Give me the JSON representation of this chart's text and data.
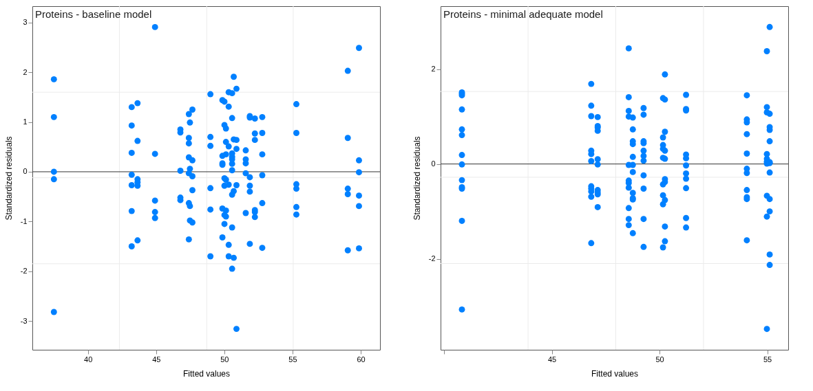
{
  "chart_data": [
    {
      "type": "scatter",
      "title": "Proteins - baseline model",
      "xlabel": "Fitted values",
      "ylabel": "Standardized residuals",
      "marker": "circle",
      "grid": false,
      "xlim": [
        35.93,
        61.41
      ],
      "ylim": [
        -3.58,
        3.33
      ],
      "xticks": [
        40,
        45,
        50,
        55,
        60
      ],
      "yticks": [
        -3,
        -2,
        -1,
        0,
        1,
        2,
        3
      ],
      "ref_lines": [
        {
          "axis": "x",
          "value": 42.31,
          "color": "#ebebeb"
        },
        {
          "axis": "x",
          "value": 48.71,
          "color": "#ebebeb"
        },
        {
          "axis": "x",
          "value": 55.05,
          "color": "#ebebeb"
        },
        {
          "axis": "y",
          "value": 1.6,
          "color": "#ebebeb"
        },
        {
          "axis": "y",
          "value": -0.12,
          "color": "#ebebeb"
        },
        {
          "axis": "y",
          "value": -1.85,
          "color": "#ebebeb"
        },
        {
          "axis": "y",
          "value": 0,
          "color": "#333333"
        }
      ],
      "series": [
        {
          "color": "#0080ff",
          "x": [
            37.51,
            37.51,
            37.51,
            37.51,
            37.51,
            43.21,
            43.21,
            43.21,
            43.21,
            43.21,
            43.21,
            43.21,
            43.64,
            43.64,
            43.64,
            43.64,
            43.64,
            43.64,
            44.92,
            44.92,
            44.92,
            44.92,
            44.92,
            46.78,
            46.78,
            46.78,
            46.78,
            46.78,
            47.4,
            47.4,
            47.4,
            47.4,
            47.4,
            47.4,
            47.4,
            47.48,
            47.48,
            47.48,
            47.48,
            47.66,
            47.66,
            47.66,
            47.66,
            47.66,
            48.98,
            48.98,
            48.98,
            48.98,
            48.98,
            48.98,
            49.86,
            49.86,
            49.86,
            49.86,
            49.86,
            49.86,
            50.01,
            50.01,
            50.01,
            50.01,
            50.01,
            50.01,
            50.12,
            50.12,
            50.12,
            50.12,
            50.12,
            50.12,
            50.32,
            50.32,
            50.32,
            50.32,
            50.32,
            50.32,
            50.57,
            50.57,
            50.57,
            50.57,
            50.57,
            50.57,
            50.57,
            50.57,
            50.57,
            50.57,
            50.69,
            50.69,
            50.69,
            50.69,
            50.89,
            50.89,
            50.89,
            50.89,
            50.89,
            51.57,
            51.57,
            51.57,
            51.57,
            51.57,
            51.87,
            51.87,
            51.87,
            51.87,
            51.87,
            51.87,
            52.24,
            52.24,
            52.24,
            52.24,
            52.24,
            52.24,
            52.78,
            52.78,
            52.78,
            52.78,
            52.78,
            52.78,
            55.28,
            55.28,
            55.28,
            55.28,
            55.28,
            55.28,
            59.05,
            59.05,
            59.05,
            59.05,
            59.05,
            59.87,
            59.87,
            59.87,
            59.87,
            59.87,
            59.87
          ],
          "values": [
            1.86,
            1.1,
            0.0,
            -0.15,
            -2.82,
            1.3,
            0.93,
            0.38,
            -0.06,
            -0.27,
            -0.79,
            -1.5,
            1.38,
            0.62,
            -0.15,
            -0.21,
            -0.28,
            -1.38,
            2.91,
            0.36,
            -0.58,
            -0.81,
            -0.93,
            0.85,
            0.79,
            0.02,
            -0.52,
            -0.57,
            1.16,
            0.68,
            0.57,
            0.29,
            -0.03,
            -0.63,
            -1.36,
            0.99,
            0.06,
            -0.69,
            -0.98,
            1.25,
            0.23,
            -0.09,
            -0.37,
            -1.02,
            1.56,
            0.7,
            0.52,
            -0.33,
            -0.76,
            -1.7,
            1.44,
            0.32,
            0.17,
            0.14,
            -0.74,
            -1.32,
            1.41,
            0.94,
            -0.13,
            -0.28,
            -0.87,
            -1.05,
            0.87,
            0.6,
            0.35,
            -0.16,
            -0.78,
            -0.9,
            1.6,
            1.31,
            0.51,
            -0.26,
            -1.47,
            -1.7,
            1.58,
            1.08,
            0.37,
            0.3,
            0.25,
            0.16,
            0.03,
            -0.46,
            -1.12,
            -1.95,
            1.91,
            0.65,
            -0.39,
            -1.73,
            1.67,
            0.64,
            0.46,
            -0.27,
            -3.16,
            0.43,
            0.25,
            0.17,
            -0.03,
            -0.83,
            1.12,
            1.09,
            -0.11,
            -0.28,
            -0.4,
            -1.45,
            1.07,
            0.77,
            0.64,
            -0.77,
            -0.81,
            -0.91,
            1.1,
            0.78,
            0.35,
            -0.07,
            -0.63,
            -1.53,
            1.36,
            0.78,
            -0.25,
            -0.34,
            -0.71,
            -0.86,
            2.03,
            0.68,
            -0.34,
            -0.45,
            -1.58,
            2.49,
            0.23,
            -0.01,
            -0.48,
            -0.69,
            -1.54
          ]
        }
      ]
    },
    {
      "type": "scatter",
      "title": "Proteins - minimal adequate model",
      "xlabel": "Fitted values",
      "ylabel": "Standardized residuals",
      "marker": "circle",
      "grid": false,
      "xlim": [
        39.84,
        55.97
      ],
      "ylim": [
        -3.92,
        3.33
      ],
      "xticks": [
        {
          "value": 40,
          "label": null
        },
        45,
        50,
        55
      ],
      "yticks": [
        -2,
        0,
        2
      ],
      "ref_lines": [
        {
          "axis": "x",
          "value": 43.9,
          "color": "#ebebeb"
        },
        {
          "axis": "x",
          "value": 47.97,
          "color": "#ebebeb"
        },
        {
          "axis": "x",
          "value": 52.04,
          "color": "#ebebeb"
        },
        {
          "axis": "y",
          "value": 1.53,
          "color": "#ebebeb"
        },
        {
          "axis": "y",
          "value": -0.28,
          "color": "#ebebeb"
        },
        {
          "axis": "y",
          "value": -2.1,
          "color": "#ebebeb"
        },
        {
          "axis": "y",
          "value": 0,
          "color": "#333333"
        }
      ],
      "series": [
        {
          "color": "#0080ff",
          "x": [
            40.83,
            40.83,
            40.83,
            40.83,
            40.83,
            40.83,
            40.83,
            40.83,
            40.83,
            40.83,
            40.83,
            40.83,
            40.83,
            46.83,
            46.83,
            46.83,
            46.83,
            46.83,
            46.83,
            46.83,
            46.83,
            46.83,
            46.83,
            46.83,
            47.13,
            47.13,
            47.13,
            47.13,
            47.13,
            47.13,
            47.13,
            47.13,
            47.13,
            47.13,
            48.57,
            48.57,
            48.57,
            48.57,
            48.57,
            48.57,
            48.57,
            48.57,
            48.57,
            48.57,
            48.57,
            48.76,
            48.76,
            48.76,
            48.76,
            48.76,
            48.76,
            48.76,
            48.76,
            48.76,
            48.76,
            48.76,
            49.26,
            49.26,
            49.26,
            49.26,
            49.26,
            49.26,
            49.26,
            49.26,
            49.26,
            49.26,
            49.26,
            50.16,
            50.16,
            50.16,
            50.16,
            50.16,
            50.16,
            50.16,
            50.16,
            50.16,
            50.25,
            50.25,
            50.25,
            50.25,
            50.25,
            50.25,
            50.25,
            50.25,
            50.25,
            50.25,
            51.23,
            51.23,
            51.23,
            51.23,
            51.23,
            51.23,
            51.23,
            51.23,
            51.23,
            51.23,
            51.23,
            54.05,
            54.05,
            54.05,
            54.05,
            54.05,
            54.05,
            54.05,
            54.05,
            54.05,
            54.05,
            54.05,
            54.98,
            54.98,
            54.98,
            54.98,
            54.98,
            54.98,
            54.98,
            54.98,
            54.98,
            54.98,
            55.11,
            55.11,
            55.11,
            55.11,
            55.11,
            55.11,
            55.11,
            55.11,
            55.11,
            55.11,
            55.11,
            55.11
          ],
          "values": [
            1.51,
            1.48,
            1.45,
            1.15,
            0.73,
            0.61,
            0.19,
            -0.01,
            -0.34,
            -0.49,
            -0.52,
            -1.2,
            -3.07,
            1.69,
            1.23,
            1.01,
            0.28,
            0.21,
            0.06,
            -0.47,
            -0.52,
            -0.58,
            -0.69,
            -1.67,
            0.99,
            0.8,
            0.77,
            0.7,
            0.1,
            -0.01,
            -0.55,
            -0.6,
            -0.64,
            -0.91,
            2.44,
            1.41,
            1.12,
            1.0,
            -0.02,
            -0.35,
            -0.4,
            -0.5,
            -0.93,
            -1.16,
            -1.29,
            0.98,
            0.73,
            0.48,
            0.42,
            0.15,
            -0.02,
            -0.17,
            -0.61,
            -0.72,
            -0.75,
            -1.46,
            1.18,
            1.04,
            0.48,
            0.44,
            0.28,
            0.17,
            0.07,
            -0.24,
            -0.52,
            -1.16,
            -1.75,
            1.39,
            0.56,
            0.4,
            0.32,
            0.13,
            -0.43,
            -0.66,
            -0.85,
            -1.76,
            1.89,
            1.36,
            0.68,
            0.28,
            0.11,
            -0.32,
            -0.38,
            -0.76,
            -1.32,
            -1.63,
            1.46,
            1.16,
            1.13,
            0.2,
            0.12,
            -0.03,
            -0.2,
            -0.31,
            -0.51,
            -1.14,
            -1.34,
            1.45,
            0.94,
            0.88,
            0.63,
            0.22,
            -0.1,
            -0.19,
            -0.55,
            -0.7,
            -0.74,
            -1.61,
            2.38,
            1.2,
            1.09,
            0.21,
            0.11,
            0.01,
            0.05,
            -0.67,
            -1.11,
            -3.48,
            2.89,
            1.06,
            0.78,
            0.72,
            0.48,
            0.04,
            0.02,
            -0.18,
            -0.74,
            -1.0,
            -1.91,
            -2.13
          ]
        }
      ]
    }
  ]
}
